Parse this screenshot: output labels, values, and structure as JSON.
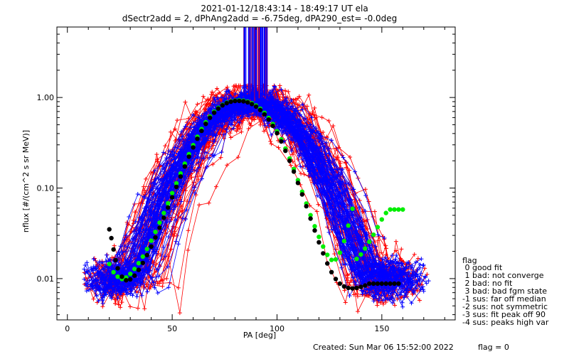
{
  "chart_data": {
    "type": "scatter",
    "title_line1": "2021-01-12/18:43:14 - 18:49:17 UT ela",
    "title_line2": "dSectr2add = 2, dPhAng2add = -6.75deg, dPA290_est=  -0.0deg",
    "xlabel": "PA [deg]",
    "ylabel": "nflux [#/(cm^2 s sr MeV)]",
    "xlim": [
      -5,
      185
    ],
    "ylim": [
      0.0035,
      6.0
    ],
    "yscale": "log",
    "x_ticks": [
      0,
      50,
      100,
      150
    ],
    "x_tick_labels": [
      "0",
      "50",
      "100",
      "150"
    ],
    "y_ticks": [
      0.01,
      0.1,
      1.0
    ],
    "y_tick_labels": [
      "0.01",
      "0.10",
      "1.00"
    ],
    "colors": {
      "red": "#ff0000",
      "blue": "#0000ff",
      "green": "#00ee00",
      "black": "#000000"
    },
    "series": [
      {
        "color": "green",
        "x": [
          20,
          22,
          24,
          26,
          28,
          30,
          32,
          34,
          36,
          38,
          40,
          42,
          44,
          46,
          48,
          50,
          52,
          54,
          56,
          58,
          60,
          62,
          64,
          66,
          68,
          70,
          72,
          74,
          76,
          78,
          80,
          82,
          84,
          86,
          88,
          90,
          92,
          94,
          96,
          98,
          100,
          102,
          104,
          106,
          108,
          110,
          112,
          114,
          116,
          118,
          120,
          122,
          124,
          126,
          128,
          130,
          132,
          134,
          136,
          138,
          140,
          142,
          144,
          146,
          148,
          150,
          152,
          154,
          156,
          158,
          160
        ],
        "y": [
          0.0145,
          0.0118,
          0.0105,
          0.0099,
          0.0103,
          0.0113,
          0.0128,
          0.0148,
          0.0175,
          0.0212,
          0.0262,
          0.0328,
          0.0415,
          0.053,
          0.068,
          0.088,
          0.113,
          0.145,
          0.186,
          0.237,
          0.298,
          0.369,
          0.448,
          0.532,
          0.617,
          0.698,
          0.77,
          0.83,
          0.876,
          0.908,
          0.925,
          0.93,
          0.922,
          0.9,
          0.865,
          0.815,
          0.752,
          0.677,
          0.595,
          0.509,
          0.425,
          0.345,
          0.273,
          0.212,
          0.162,
          0.122,
          0.091,
          0.0675,
          0.0502,
          0.0378,
          0.0289,
          0.0226,
          0.0183,
          0.0161,
          0.0163,
          0.0193,
          0.026,
          0.0385,
          0.059,
          0.0165,
          0.0185,
          0.0215,
          0.0255,
          0.0305,
          0.037,
          0.045,
          0.053,
          0.058,
          0.058,
          0.058,
          0.058
        ]
      },
      {
        "color": "black",
        "x": [
          20,
          21,
          22,
          23,
          24,
          26,
          28,
          30,
          32,
          34,
          36,
          38,
          40,
          42,
          44,
          46,
          48,
          50,
          52,
          54,
          56,
          58,
          60,
          62,
          64,
          66,
          68,
          70,
          72,
          74,
          76,
          78,
          80,
          82,
          84,
          86,
          88,
          90,
          92,
          94,
          96,
          98,
          100,
          102,
          104,
          106,
          108,
          110,
          112,
          114,
          116,
          118,
          120,
          122,
          124,
          126,
          128,
          130,
          132,
          134,
          136,
          138,
          140,
          142,
          144,
          146,
          148,
          150,
          152,
          154,
          156,
          158
        ],
        "y": [
          0.035,
          0.028,
          0.021,
          0.016,
          0.013,
          0.0105,
          0.0096,
          0.0098,
          0.0108,
          0.0125,
          0.0149,
          0.0182,
          0.0226,
          0.0285,
          0.0364,
          0.047,
          0.061,
          0.079,
          0.103,
          0.134,
          0.173,
          0.222,
          0.281,
          0.35,
          0.428,
          0.512,
          0.598,
          0.68,
          0.755,
          0.818,
          0.866,
          0.898,
          0.915,
          0.918,
          0.908,
          0.884,
          0.846,
          0.794,
          0.728,
          0.652,
          0.57,
          0.486,
          0.404,
          0.327,
          0.258,
          0.2,
          0.152,
          0.114,
          0.085,
          0.063,
          0.046,
          0.034,
          0.0252,
          0.019,
          0.0147,
          0.0118,
          0.0099,
          0.0088,
          0.0082,
          0.0079,
          0.0078,
          0.0079,
          0.0081,
          0.0084,
          0.0088,
          0.0088,
          0.0088,
          0.0088,
          0.0088,
          0.0088,
          0.0088,
          0.0088
        ]
      }
    ]
  },
  "legend": {
    "title": "flag",
    "entries": [
      " 0 good fit",
      " 1 bad: not converge",
      " 2 bad: no fit",
      " 3 bad: bad fgm state",
      "-1 sus: far off median",
      "-2 sus: not symmetric",
      "-3 sus: fit peak off 90",
      "-4 sus: peaks high var"
    ]
  },
  "footer": {
    "created": "Created: Sun Mar 06 15:52:00 2022",
    "flag": "flag = 0"
  }
}
